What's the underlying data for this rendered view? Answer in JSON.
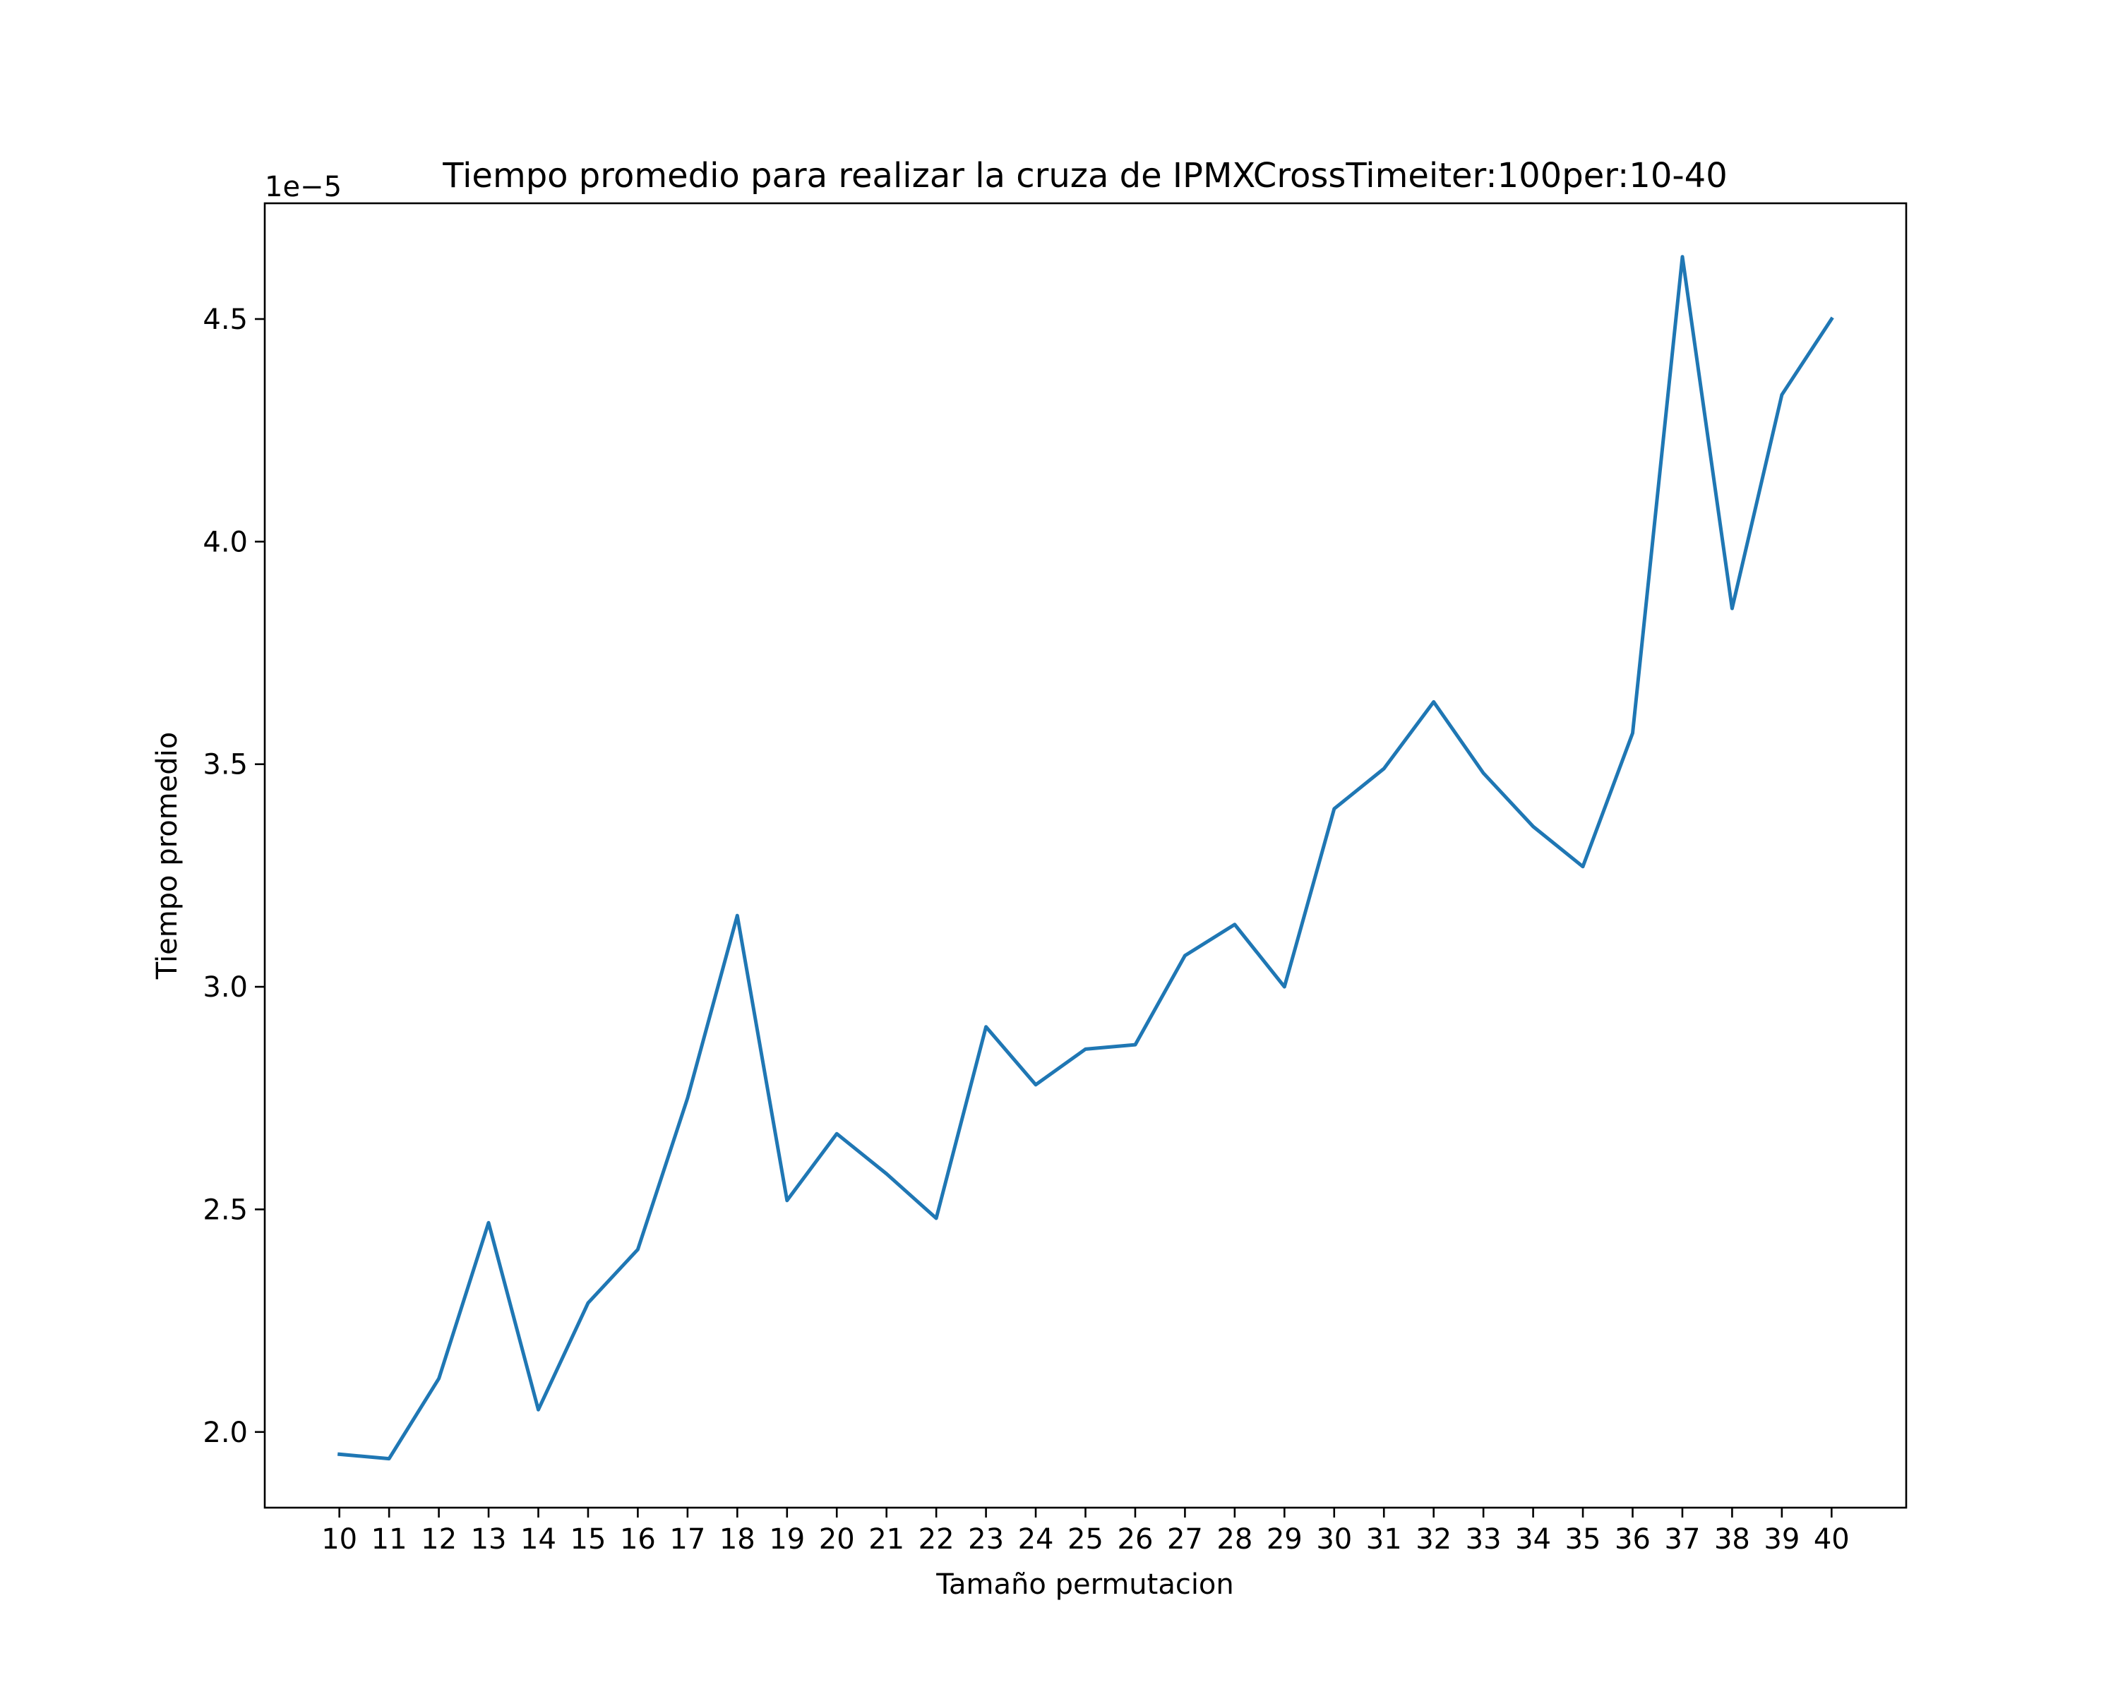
{
  "chart_data": {
    "type": "line",
    "title": "Tiempo promedio para realizar la cruza de IPMXCrossTimeiter:100per:10-40",
    "xlabel": "Tamaño permutacion",
    "ylabel": "Tiempo promedio",
    "y_offset_label": "1e−5",
    "x": [
      10,
      11,
      12,
      13,
      14,
      15,
      16,
      17,
      18,
      19,
      20,
      21,
      22,
      23,
      24,
      25,
      26,
      27,
      28,
      29,
      30,
      31,
      32,
      33,
      34,
      35,
      36,
      37,
      38,
      39,
      40
    ],
    "series": [
      {
        "values": [
          1.95,
          1.94,
          2.12,
          2.47,
          2.05,
          2.29,
          2.41,
          2.75,
          3.16,
          2.52,
          2.67,
          2.58,
          2.48,
          2.91,
          2.78,
          2.86,
          2.87,
          3.07,
          3.14,
          3.0,
          3.4,
          3.49,
          3.64,
          3.48,
          3.36,
          3.27,
          3.57,
          4.64,
          3.85,
          4.33,
          4.5
        ],
        "color": "#1f77b4"
      }
    ],
    "xlim": [
      8.5,
      41.5
    ],
    "ylim": [
      1.83,
      4.76
    ],
    "y_ticks": [
      2.0,
      2.5,
      3.0,
      3.5,
      4.0,
      4.5
    ],
    "y_tick_labels": [
      "2.0",
      "2.5",
      "3.0",
      "3.5",
      "4.0",
      "4.5"
    ],
    "x_tick_labels": [
      "10",
      "11",
      "12",
      "13",
      "14",
      "15",
      "16",
      "17",
      "18",
      "19",
      "20",
      "21",
      "22",
      "23",
      "24",
      "25",
      "26",
      "27",
      "28",
      "29",
      "30",
      "31",
      "32",
      "33",
      "34",
      "35",
      "36",
      "37",
      "38",
      "39",
      "40"
    ],
    "grid": false,
    "legend": "none"
  }
}
